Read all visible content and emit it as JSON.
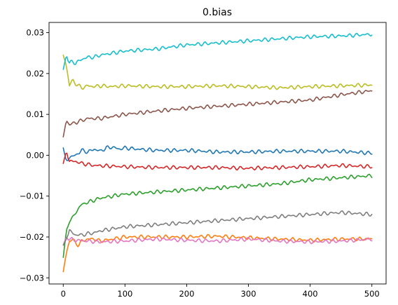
{
  "chart_data": {
    "type": "line",
    "title": "0.bias",
    "xlabel": "",
    "ylabel": "",
    "xlim": [
      -23,
      523
    ],
    "ylim": [
      -0.0315,
      0.0325
    ],
    "xticks": [
      0,
      100,
      200,
      300,
      400,
      500
    ],
    "xtick_labels": [
      "0",
      "100",
      "200",
      "300",
      "400",
      "500"
    ],
    "yticks": [
      -0.03,
      -0.02,
      -0.01,
      0.0,
      0.01,
      0.02,
      0.03
    ],
    "ytick_labels": [
      "−0.03",
      "−0.02",
      "−0.01",
      "0.00",
      "0.01",
      "0.02",
      "0.03"
    ],
    "grid": false,
    "series": [
      {
        "color": "#1f77b4",
        "x": [
          0,
          5,
          10,
          20,
          30,
          40,
          50,
          60,
          70,
          80,
          90,
          100,
          120,
          150,
          200,
          250,
          300,
          350,
          400,
          450,
          500
        ],
        "y": [
          0.0018,
          -0.0015,
          -0.0005,
          0.0,
          0.0012,
          0.0008,
          0.0015,
          0.001,
          0.0018,
          0.002,
          0.0015,
          0.0018,
          0.0015,
          0.0012,
          0.0012,
          0.0008,
          0.0008,
          0.001,
          0.001,
          0.001,
          0.0005
        ]
      },
      {
        "color": "#ff7f0e",
        "x": [
          0,
          5,
          10,
          15,
          20,
          25,
          30,
          40,
          50,
          60,
          80,
          100,
          150,
          200,
          250,
          300,
          350,
          400,
          450,
          500
        ],
        "y": [
          -0.0285,
          -0.024,
          -0.021,
          -0.0205,
          -0.0215,
          -0.022,
          -0.021,
          -0.0205,
          -0.0205,
          -0.021,
          -0.0205,
          -0.02,
          -0.02,
          -0.02,
          -0.0198,
          -0.0202,
          -0.0205,
          -0.0208,
          -0.0205,
          -0.0205
        ]
      },
      {
        "color": "#2ca02c",
        "x": [
          0,
          5,
          10,
          15,
          20,
          30,
          40,
          50,
          60,
          80,
          100,
          150,
          200,
          250,
          300,
          350,
          400,
          450,
          500
        ],
        "y": [
          -0.025,
          -0.0185,
          -0.016,
          -0.0155,
          -0.014,
          -0.012,
          -0.0115,
          -0.011,
          -0.0105,
          -0.01,
          -0.0095,
          -0.009,
          -0.0085,
          -0.008,
          -0.0075,
          -0.007,
          -0.006,
          -0.0055,
          -0.005
        ]
      },
      {
        "color": "#d62728",
        "x": [
          0,
          5,
          10,
          20,
          30,
          50,
          100,
          150,
          200,
          250,
          300,
          350,
          400,
          450,
          500
        ],
        "y": [
          -0.002,
          0.001,
          -0.0015,
          -0.0015,
          -0.002,
          -0.0025,
          -0.0028,
          -0.003,
          -0.003,
          -0.003,
          -0.0032,
          -0.003,
          -0.0028,
          -0.0025,
          -0.0028
        ]
      },
      {
        "color": "#8c564b",
        "x": [
          0,
          5,
          10,
          20,
          30,
          40,
          50,
          60,
          80,
          100,
          150,
          200,
          250,
          300,
          350,
          400,
          450,
          500
        ],
        "y": [
          0.0045,
          0.0085,
          0.0075,
          0.008,
          0.0085,
          0.009,
          0.009,
          0.009,
          0.0095,
          0.01,
          0.0108,
          0.0115,
          0.012,
          0.0125,
          0.013,
          0.0135,
          0.0148,
          0.0158
        ]
      },
      {
        "color": "#e377c2",
        "x": [
          0,
          5,
          10,
          20,
          40,
          60,
          100,
          150,
          200,
          250,
          300,
          350,
          400,
          450,
          500
        ],
        "y": [
          -0.022,
          -0.02,
          -0.0205,
          -0.0208,
          -0.021,
          -0.0212,
          -0.021,
          -0.0205,
          -0.0208,
          -0.021,
          -0.0205,
          -0.021,
          -0.0212,
          -0.021,
          -0.0205
        ]
      },
      {
        "color": "#7f7f7f",
        "x": [
          0,
          5,
          10,
          20,
          30,
          40,
          50,
          60,
          80,
          100,
          150,
          200,
          250,
          300,
          350,
          400,
          450,
          500
        ],
        "y": [
          -0.022,
          -0.0205,
          -0.0185,
          -0.0195,
          -0.0195,
          -0.0192,
          -0.019,
          -0.0185,
          -0.018,
          -0.0175,
          -0.017,
          -0.0165,
          -0.016,
          -0.0155,
          -0.015,
          -0.0145,
          -0.014,
          -0.0145
        ]
      },
      {
        "color": "#bcbd22",
        "x": [
          0,
          5,
          10,
          15,
          20,
          30,
          40,
          50,
          60,
          80,
          100,
          150,
          200,
          250,
          300,
          350,
          400,
          450,
          500
        ],
        "y": [
          0.0245,
          0.022,
          0.017,
          0.0185,
          0.0175,
          0.0165,
          0.017,
          0.0168,
          0.017,
          0.0168,
          0.017,
          0.0168,
          0.0168,
          0.017,
          0.0168,
          0.0165,
          0.0168,
          0.017,
          0.0172
        ]
      },
      {
        "color": "#17becf",
        "x": [
          0,
          5,
          10,
          15,
          20,
          30,
          40,
          50,
          60,
          80,
          100,
          150,
          200,
          250,
          300,
          350,
          400,
          450,
          500
        ],
        "y": [
          0.021,
          0.0245,
          0.0225,
          0.023,
          0.0225,
          0.0235,
          0.024,
          0.024,
          0.0245,
          0.025,
          0.0255,
          0.026,
          0.027,
          0.0275,
          0.028,
          0.0285,
          0.029,
          0.0292,
          0.0296
        ]
      }
    ]
  }
}
